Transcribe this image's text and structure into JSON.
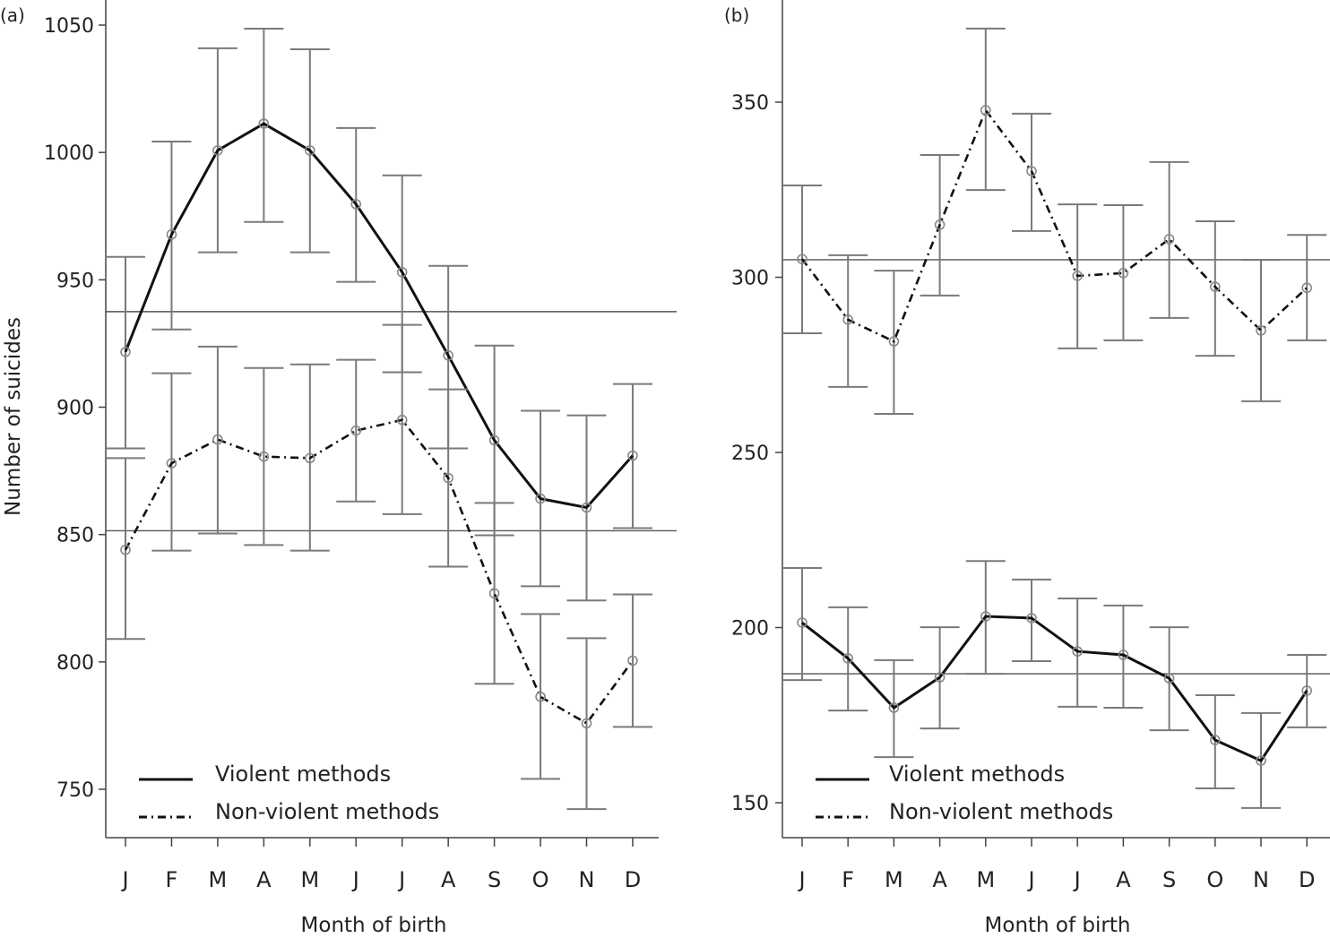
{
  "chart_data": [
    {
      "type": "line",
      "panel_label": "(a)",
      "xlabel": "Month of birth",
      "ylabel": "Number of suicides",
      "categories": [
        "J",
        "F",
        "M",
        "A",
        "M",
        "J",
        "J",
        "A",
        "S",
        "O",
        "N",
        "D"
      ],
      "ylim": [
        730,
        1060
      ],
      "yticks": [
        750,
        800,
        850,
        900,
        950,
        1000,
        1050
      ],
      "grid": false,
      "legend_position": "bottom-left",
      "reference_lines": [
        937.5,
        851.5
      ],
      "series": [
        {
          "name": "Violent methods",
          "style": "solid",
          "values": [
            921.7,
            967.8,
            1000.8,
            1011.3,
            1000.8,
            979.7,
            953,
            920.3,
            887,
            864.1,
            860.6,
            881
          ],
          "ci_high": [
            959,
            1004.3,
            1040.9,
            1048.6,
            1040.5,
            1009.6,
            991,
            955.5,
            924.2,
            898.6,
            896.8,
            909.1
          ],
          "ci_low": [
            883.8,
            930.5,
            960.8,
            972.7,
            960.8,
            949.2,
            913.7,
            883.8,
            849.7,
            829.7,
            824.1,
            852.5
          ]
        },
        {
          "name": "Non-violent methods",
          "style": "dash-dot",
          "values": [
            844,
            878,
            887.3,
            880.6,
            880,
            890.8,
            895,
            872.2,
            826.9,
            786.3,
            775.9,
            800.5
          ],
          "ci_high": [
            880,
            913.3,
            923.8,
            915.4,
            916.8,
            918.6,
            932.3,
            907,
            862.4,
            818.8,
            809.3,
            826.5
          ],
          "ci_low": [
            809,
            843.7,
            850.4,
            845.9,
            843.7,
            863,
            858,
            837.4,
            791.4,
            754.1,
            742.2,
            774.5
          ]
        }
      ]
    },
    {
      "type": "line",
      "panel_label": "(b)",
      "xlabel": "Month of birth",
      "ylabel": "",
      "categories": [
        "J",
        "F",
        "M",
        "A",
        "M",
        "J",
        "J",
        "A",
        "S",
        "O",
        "N",
        "D"
      ],
      "ylim": [
        140,
        379
      ],
      "yticks": [
        150,
        200,
        250,
        300,
        350
      ],
      "grid": false,
      "legend_position": "bottom-left",
      "reference_lines": [
        305,
        186.8
      ],
      "series": [
        {
          "name": "Violent methods",
          "style": "solid",
          "values": [
            201.4,
            191.2,
            177.1,
            185.8,
            203.2,
            202.7,
            193.2,
            192.2,
            185.5,
            167.9,
            162,
            182
          ],
          "ci_high": [
            217,
            205.8,
            190.7,
            200.1,
            219,
            213.7,
            208.3,
            206.3,
            200.1,
            180.7,
            175.6,
            192.2
          ],
          "ci_low": [
            185,
            176.3,
            163,
            171.2,
            186.8,
            190.4,
            177.4,
            177.1,
            170.7,
            154.1,
            148.5,
            171.5
          ]
        },
        {
          "name": "Non-violent methods",
          "style": "dash-dot",
          "values": [
            305.2,
            287.9,
            281.7,
            315,
            347.7,
            330.3,
            300.4,
            301.2,
            310.9,
            297.3,
            284.8,
            297
          ],
          "ci_high": [
            326.2,
            306.3,
            301.9,
            334.9,
            371,
            346.7,
            320.8,
            320.6,
            332.9,
            316,
            305,
            312.1
          ],
          "ci_low": [
            284,
            268.7,
            261,
            294.8,
            324.9,
            313.2,
            279.7,
            282,
            288.4,
            277.6,
            264.6,
            282
          ]
        }
      ]
    }
  ],
  "colors": {
    "line": "#111111",
    "error_bar": "#7a7a7a",
    "reference_line": "#555555",
    "marker": "#888888"
  }
}
